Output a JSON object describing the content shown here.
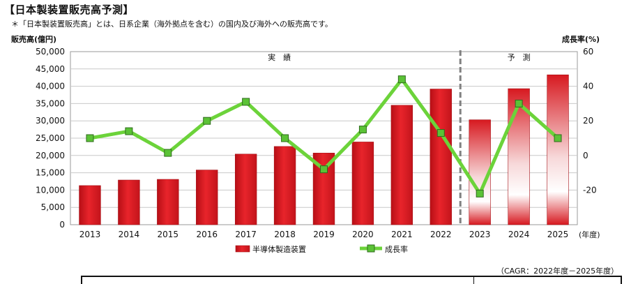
{
  "header": {
    "title": "【日本製装置販売高予測】",
    "note": "＊「日本製装置販売高」とは、日系企業（海外拠点を含む）の国内及び海外への販売高です。"
  },
  "footer": {
    "cagr": "（CAGR：2022年度－2025年度）"
  },
  "chart_data": {
    "type": "bar",
    "categories": [
      "2013",
      "2014",
      "2015",
      "2016",
      "2017",
      "2018",
      "2019",
      "2020",
      "2021",
      "2022",
      "2023",
      "2024",
      "2025"
    ],
    "x_unit": "(年度)",
    "series": [
      {
        "name": "半導体製造装置",
        "kind": "bar",
        "axis": "left",
        "values": [
          11300,
          12900,
          13100,
          15800,
          20400,
          22600,
          20700,
          23900,
          34500,
          39200,
          30300,
          39300,
          43300
        ]
      },
      {
        "name": "成長率",
        "kind": "line",
        "axis": "right",
        "values": [
          10,
          14,
          1.5,
          20,
          31,
          10,
          -8,
          15,
          44,
          13,
          -22,
          30,
          10
        ]
      }
    ],
    "ylabel": "販売高(億円)",
    "y2label": "成長率(%)",
    "ylim": [
      0,
      50000
    ],
    "y_ticks": [
      "0",
      "5,000",
      "10,000",
      "15,000",
      "20,000",
      "25,000",
      "30,000",
      "35,000",
      "40,000",
      "45,000",
      "50,000"
    ],
    "y2lim": [
      -40,
      60
    ],
    "y2_ticks": [
      "-20",
      "0",
      "20",
      "40",
      "60"
    ],
    "regions": [
      {
        "label": "実　績",
        "from": "2013",
        "to": "2022"
      },
      {
        "label": "予　測",
        "from": "2023",
        "to": "2025"
      }
    ],
    "forecast_from_index": 10,
    "grid": true,
    "legend_position": "bottom",
    "colors": {
      "bar": "#d71920",
      "bar_forecast_light": "#ffffff",
      "line": "#6cd33a",
      "marker_fill": "#5bc236",
      "marker_edge": "#2f6b1d",
      "divider": "#808080"
    }
  }
}
